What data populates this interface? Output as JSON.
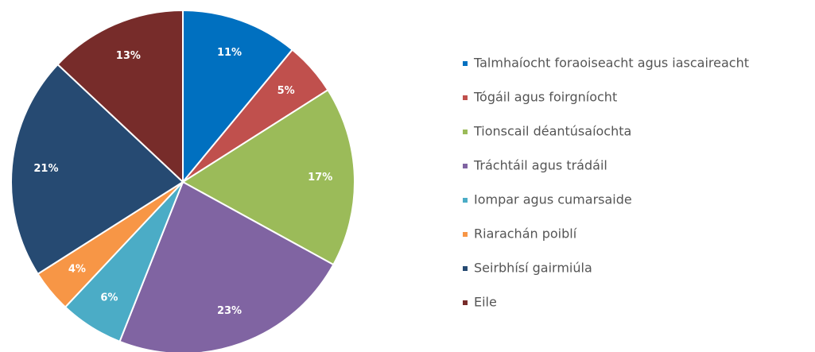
{
  "chart_data": {
    "type": "pie",
    "categories": [
      "Talmhaíocht foraoiseacht agus iascaireacht",
      "Tógáil agus foirgníocht",
      "Tionscail déantúsaíochta",
      "Tráchtáil agus trádáil",
      "Iompar agus cumarsaide",
      "Riarachán poiblí",
      "Seirbhísí gairmiúla",
      "Eile"
    ],
    "values": [
      11,
      5,
      17,
      23,
      6,
      4,
      21,
      13
    ],
    "value_labels": [
      "11%",
      "5%",
      "17%",
      "23%",
      "6%",
      "4%",
      "21%",
      "13%"
    ],
    "colors": [
      "#0070c0",
      "#c0504d",
      "#9bbb59",
      "#8064a2",
      "#4bacc6",
      "#f79646",
      "#264a72",
      "#772c2a"
    ],
    "legend": "right"
  }
}
